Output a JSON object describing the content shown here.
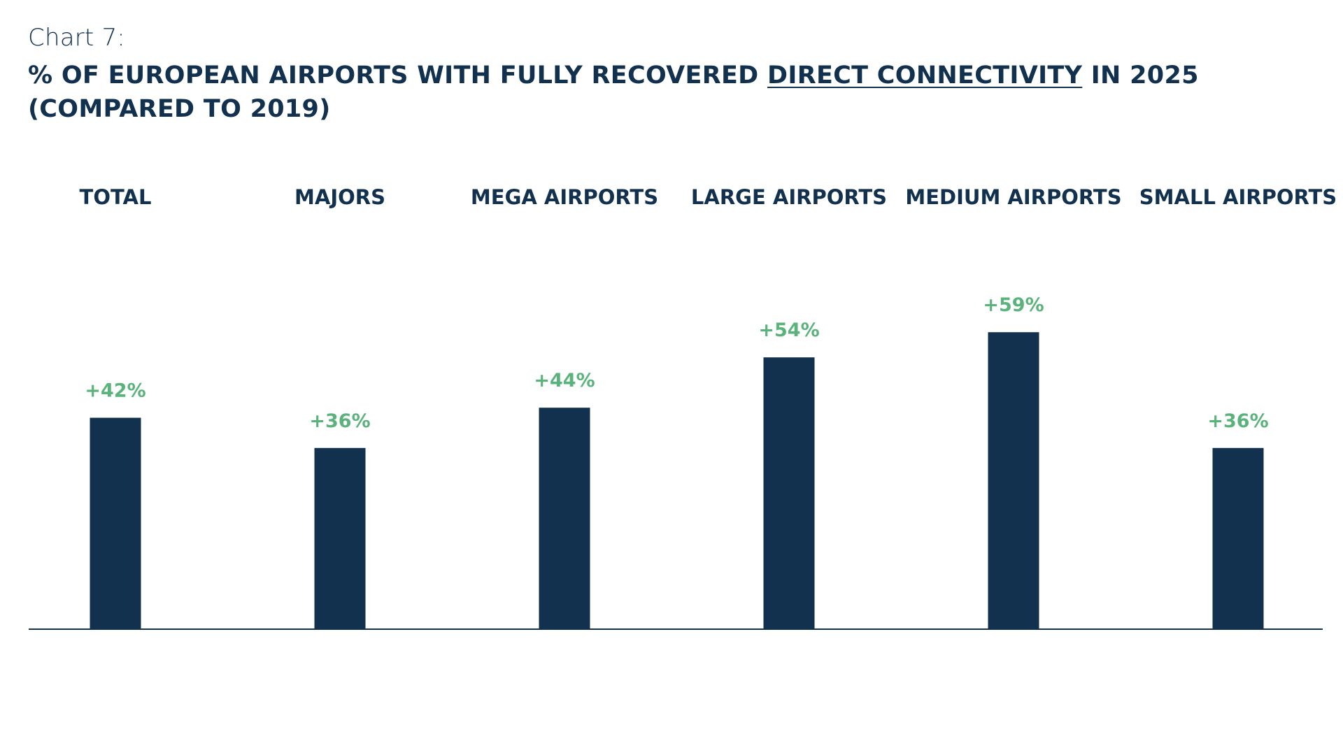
{
  "header": {
    "chart_number": "Chart 7:",
    "title_part1": "% OF EUROPEAN AIRPORTS WITH FULLY RECOVERED ",
    "title_underlined": "DIRECT CONNECTIVITY",
    "title_part2": " IN 2025",
    "title_line2": "(COMPARED TO 2019)"
  },
  "colors": {
    "bar": "#12314f",
    "label": "#5ab37b",
    "text": "#12314f",
    "axis": "#12314f"
  },
  "chart_data": {
    "type": "bar",
    "title": "% OF EUROPEAN AIRPORTS WITH FULLY RECOVERED DIRECT CONNECTIVITY IN 2025 (COMPARED TO 2019)",
    "categories": [
      "TOTAL",
      "MAJORS",
      "MEGA AIRPORTS",
      "LARGE AIRPORTS",
      "MEDIUM AIRPORTS",
      "SMALL AIRPORTS"
    ],
    "values": [
      42,
      36,
      44,
      54,
      59,
      36
    ],
    "data_labels": [
      "+42%",
      "+36%",
      "+44%",
      "+54%",
      "+59%",
      "+36%"
    ],
    "xlabel": "",
    "ylabel": "",
    "ylim": [
      0,
      100
    ],
    "grid": false,
    "legend": "none",
    "category_label_position": "top"
  }
}
